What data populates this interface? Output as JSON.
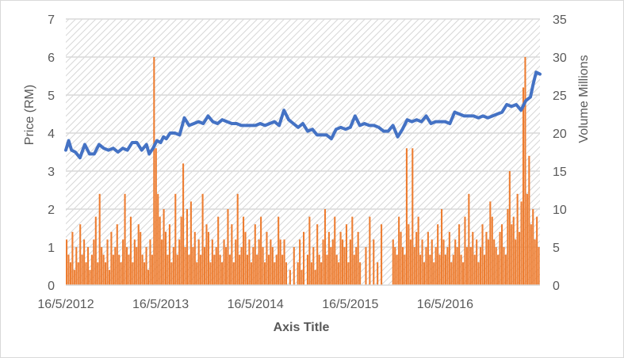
{
  "chart_data": {
    "type": "combo (line + bar, dual axis)",
    "title": "",
    "xlabel": "Axis Title",
    "ylabel_left": "Price (RM)",
    "ylabel_right": "Volume  Millions",
    "x_ticks": [
      "16/5/2012",
      "16/5/2013",
      "16/5/2014",
      "16/5/2015",
      "16/5/2016"
    ],
    "x_range": [
      "16/5/2012",
      "16/5/2017"
    ],
    "y_left": {
      "min": 0,
      "max": 7,
      "ticks": [
        0,
        1,
        2,
        3,
        4,
        5,
        6,
        7
      ]
    },
    "y_right": {
      "min": 0,
      "max": 35,
      "ticks": [
        0,
        5,
        10,
        15,
        20,
        25,
        30,
        35
      ]
    },
    "grid": true,
    "legend": "none",
    "colors": {
      "price": "#4472c4",
      "volume": "#ed7d31",
      "grid": "#d9d9d9",
      "text": "#595959"
    },
    "series": [
      {
        "name": "Price (RM)",
        "type": "line",
        "axis": "left",
        "x_years_since_start": [
          0.0,
          0.03,
          0.06,
          0.1,
          0.15,
          0.2,
          0.25,
          0.3,
          0.35,
          0.4,
          0.45,
          0.5,
          0.55,
          0.6,
          0.65,
          0.7,
          0.75,
          0.8,
          0.85,
          0.88,
          0.92,
          0.96,
          1.0,
          1.03,
          1.06,
          1.1,
          1.15,
          1.2,
          1.25,
          1.3,
          1.35,
          1.4,
          1.45,
          1.5,
          1.55,
          1.6,
          1.65,
          1.7,
          1.75,
          1.8,
          1.85,
          1.9,
          1.95,
          2.0,
          2.05,
          2.1,
          2.15,
          2.2,
          2.25,
          2.3,
          2.35,
          2.4,
          2.45,
          2.5,
          2.55,
          2.6,
          2.65,
          2.7,
          2.75,
          2.8,
          2.85,
          2.9,
          2.95,
          3.0,
          3.05,
          3.1,
          3.15,
          3.2,
          3.25,
          3.3,
          3.35,
          3.4,
          3.45,
          3.5,
          3.55,
          3.6,
          3.65,
          3.7,
          3.75,
          3.8,
          3.85,
          3.9,
          3.95,
          4.0,
          4.05,
          4.1,
          4.15,
          4.2,
          4.25,
          4.3,
          4.35,
          4.4,
          4.45,
          4.5,
          4.55,
          4.6,
          4.65,
          4.7,
          4.75,
          4.8,
          4.85,
          4.9,
          4.93,
          4.96,
          5.0
        ],
        "values": [
          3.55,
          3.8,
          3.55,
          3.5,
          3.35,
          3.7,
          3.45,
          3.45,
          3.7,
          3.6,
          3.55,
          3.6,
          3.5,
          3.6,
          3.55,
          3.75,
          3.75,
          3.55,
          3.7,
          3.45,
          3.6,
          3.8,
          3.75,
          3.9,
          3.85,
          4.0,
          4.0,
          3.95,
          4.4,
          4.2,
          4.25,
          4.3,
          4.25,
          4.45,
          4.3,
          4.25,
          4.35,
          4.3,
          4.25,
          4.25,
          4.2,
          4.2,
          4.2,
          4.2,
          4.25,
          4.2,
          4.25,
          4.3,
          4.2,
          4.6,
          4.35,
          4.25,
          4.15,
          4.25,
          4.05,
          4.1,
          3.95,
          3.95,
          3.95,
          3.85,
          4.1,
          4.15,
          4.1,
          4.15,
          4.45,
          4.2,
          4.25,
          4.2,
          4.2,
          4.15,
          4.05,
          4.05,
          4.2,
          3.9,
          4.1,
          4.35,
          4.3,
          4.35,
          4.3,
          4.45,
          4.25,
          4.3,
          4.3,
          4.3,
          4.25,
          4.55,
          4.5,
          4.45,
          4.45,
          4.45,
          4.4,
          4.45,
          4.4,
          4.45,
          4.5,
          4.55,
          4.75,
          4.7,
          4.75,
          4.6,
          4.85,
          4.95,
          5.3,
          5.6,
          5.55,
          5.95,
          5.9
        ]
      },
      {
        "name": "Volume (Millions)",
        "type": "bar",
        "axis": "right",
        "note": "daily bars; sampled values (millions) evenly spaced across 16/5/2012 - 16/5/2017; gaps (zero volume) around late 2014 and mid 2015",
        "values": [
          6,
          4,
          3,
          7,
          2,
          5,
          3,
          8,
          4,
          6,
          3,
          5,
          2,
          4,
          6,
          9,
          3,
          12,
          5,
          4,
          3,
          6,
          2,
          7,
          4,
          5,
          8,
          4,
          3,
          6,
          12,
          5,
          4,
          9,
          3,
          6,
          5,
          8,
          7,
          4,
          3,
          5,
          2,
          6,
          4,
          30,
          18,
          12,
          9,
          6,
          10,
          7,
          4,
          8,
          3,
          5,
          12,
          4,
          6,
          9,
          16,
          5,
          10,
          4,
          11,
          5,
          7,
          3,
          6,
          4,
          12,
          5,
          8,
          7,
          3,
          6,
          4,
          5,
          9,
          4,
          3,
          6,
          5,
          10,
          4,
          8,
          3,
          6,
          12,
          4,
          5,
          9,
          7,
          4,
          6,
          3,
          5,
          8,
          4,
          6,
          9,
          5,
          3,
          7,
          4,
          6,
          5,
          3,
          4,
          9,
          6,
          4,
          6,
          3,
          0,
          2,
          0,
          5,
          0,
          3,
          6,
          2,
          7,
          0,
          4,
          9,
          3,
          5,
          2,
          8,
          4,
          3,
          6,
          10,
          4,
          7,
          5,
          6,
          9,
          4,
          3,
          7,
          6,
          5,
          8,
          3,
          6,
          9,
          4,
          5,
          7,
          3,
          0,
          0,
          5,
          0,
          9,
          0,
          6,
          0,
          3,
          0,
          8,
          0,
          0,
          0,
          0,
          0,
          6,
          5,
          4,
          9,
          7,
          5,
          4,
          18,
          8,
          6,
          18,
          5,
          7,
          9,
          4,
          6,
          3,
          5,
          7,
          4,
          6,
          3,
          5,
          8,
          4,
          10,
          6,
          4,
          5,
          7,
          3,
          4,
          6,
          5,
          8,
          4,
          3,
          9,
          5,
          12,
          5,
          7,
          4,
          6,
          3,
          5,
          8,
          4,
          7,
          6,
          11,
          9,
          6,
          5,
          4,
          7,
          8,
          5,
          4,
          10,
          15,
          8,
          9,
          6,
          12,
          7,
          11,
          26,
          30,
          12,
          17,
          8,
          10,
          6,
          9,
          5
        ]
      }
    ]
  }
}
